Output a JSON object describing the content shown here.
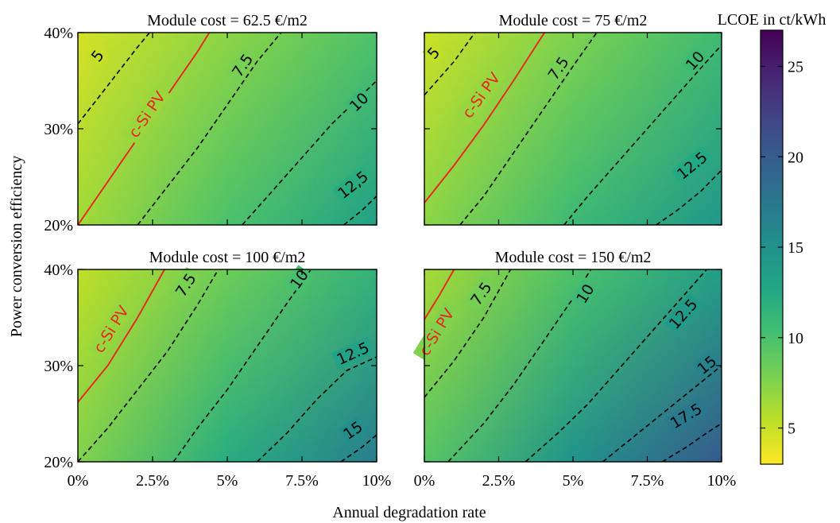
{
  "figure": {
    "ylabel": "Power conversion efficiency",
    "xlabel": "Annual degradation rate",
    "colorbar_label": "LCOE in ct/kWh"
  },
  "chart_data": {
    "type": "heatmap",
    "colormap": "viridis_r",
    "colorbar": {
      "range": [
        3,
        27
      ],
      "ticks": [
        5,
        10,
        15,
        20,
        25
      ],
      "tick_labels": [
        "5",
        "10",
        "15",
        "20",
        "25"
      ]
    },
    "x": {
      "label": "Annual degradation rate",
      "range": [
        0,
        10
      ],
      "ticks": [
        0,
        2.5,
        5,
        7.5,
        10
      ],
      "tick_labels": [
        "0%",
        "2.5%",
        "5%",
        "7.5%",
        "10%"
      ]
    },
    "y": {
      "label": "Power conversion efficiency",
      "range": [
        20,
        40
      ],
      "ticks": [
        20,
        30,
        40
      ],
      "tick_labels": [
        "20%",
        "30%",
        "40%"
      ]
    },
    "reference_line": {
      "label": "c-Si PV",
      "color": "#e8251f"
    },
    "panels": [
      {
        "title": "Module cost = 62.5 €/m2",
        "module_cost": 62.5,
        "lcoe_corners": {
          "x0_y40": 4.5,
          "x10_y40": 9.8,
          "x0_y20": 6.4,
          "x10_y20": 13.4
        },
        "csi_line": [
          [
            0,
            20
          ],
          [
            1,
            24.5
          ],
          [
            2,
            29
          ],
          [
            3,
            33.5
          ],
          [
            4,
            38
          ],
          [
            4.4,
            40
          ]
        ],
        "csi_label_pos": [
          2.3,
          31.5
        ],
        "contours": [
          {
            "level": 5,
            "label": "5",
            "points": [
              [
                0,
                30.5
              ],
              [
                1,
                34.5
              ],
              [
                2,
                38.5
              ],
              [
                2.4,
                40
              ]
            ],
            "label_pos": [
              0.65,
              37.6
            ]
          },
          {
            "level": 7.5,
            "label": "7.5",
            "points": [
              [
                2,
                20
              ],
              [
                3,
                24
              ],
              [
                4,
                28
              ],
              [
                5,
                32.5
              ],
              [
                6,
                37
              ],
              [
                6.8,
                40
              ]
            ],
            "label_pos": [
              5.5,
              36.6
            ]
          },
          {
            "level": 10,
            "label": "10",
            "points": [
              [
                5.5,
                20
              ],
              [
                6.5,
                23.5
              ],
              [
                7.5,
                27
              ],
              [
                8.5,
                30.5
              ],
              [
                9.5,
                33.5
              ],
              [
                10,
                35
              ]
            ],
            "label_pos": [
              9.4,
              32.8
            ]
          },
          {
            "level": 12.5,
            "label": "12,5",
            "points": [
              [
                8.9,
                20
              ],
              [
                9.5,
                21.5
              ],
              [
                10,
                23
              ]
            ],
            "label_pos": [
              9.2,
              24.2
            ]
          }
        ]
      },
      {
        "title": "Module cost = 75 €/m2",
        "module_cost": 75,
        "lcoe_corners": {
          "x0_y40": 4.8,
          "x10_y40": 10.6,
          "x0_y20": 7.2,
          "x10_y20": 14.4
        },
        "csi_line": [
          [
            0,
            22.3
          ],
          [
            1,
            26.2
          ],
          [
            2,
            30.4
          ],
          [
            3,
            35
          ],
          [
            4,
            39.8
          ],
          [
            4.05,
            40
          ]
        ],
        "csi_label_pos": [
          1.9,
          33.5
        ],
        "contours": [
          {
            "level": 5,
            "label": "5",
            "points": [
              [
                0,
                33.5
              ],
              [
                1,
                37
              ],
              [
                1.7,
                40
              ]
            ],
            "label_pos": [
              0.3,
              37.9
            ]
          },
          {
            "level": 7.5,
            "label": "7.5",
            "points": [
              [
                1.2,
                20
              ],
              [
                2,
                23
              ],
              [
                3,
                27.5
              ],
              [
                4,
                32
              ],
              [
                5,
                36.5
              ],
              [
                5.8,
                40
              ]
            ],
            "label_pos": [
              4.5,
              36.3
            ]
          },
          {
            "level": 10,
            "label": "10",
            "points": [
              [
                4.7,
                20
              ],
              [
                5.5,
                23
              ],
              [
                6.5,
                26.5
              ],
              [
                7.5,
                30
              ],
              [
                8.5,
                33.5
              ],
              [
                9.5,
                37
              ],
              [
                10,
                38.7
              ]
            ],
            "label_pos": [
              9.1,
              37.1
            ]
          },
          {
            "level": 12.5,
            "label": "12.5",
            "points": [
              [
                7.8,
                20
              ],
              [
                8.5,
                21.5
              ],
              [
                9.3,
                23.5
              ],
              [
                10,
                25.7
              ]
            ],
            "label_pos": [
              9,
              26.2
            ]
          }
        ]
      },
      {
        "title": "Module cost = 100 €/m2",
        "module_cost": 100,
        "lcoe_corners": {
          "x0_y40": 5.3,
          "x10_y40": 11.5,
          "x0_y20": 7.6,
          "x10_y20": 16.8
        },
        "csi_line": [
          [
            0,
            26.2
          ],
          [
            1,
            30
          ],
          [
            2,
            35
          ],
          [
            2.9,
            40
          ]
        ],
        "csi_label_pos": [
          1.1,
          33.8
        ],
        "contours": [
          {
            "level": 7.5,
            "label": "7.5",
            "points": [
              [
                0,
                20
              ],
              [
                1,
                23.5
              ],
              [
                2,
                27.5
              ],
              [
                3,
                31.5
              ],
              [
                4,
                36.3
              ],
              [
                4.7,
                40
              ]
            ],
            "label_pos": [
              3.6,
              38.4
            ]
          },
          {
            "level": 10,
            "label": "10",
            "points": [
              [
                3.2,
                20
              ],
              [
                4,
                23.5
              ],
              [
                5,
                27.5
              ],
              [
                6,
                32
              ],
              [
                7,
                36.5
              ],
              [
                7.8,
                40
              ]
            ],
            "label_pos": [
              7.4,
              39
            ]
          },
          {
            "level": 12.5,
            "label": "12.5",
            "points": [
              [
                6,
                20
              ],
              [
                7,
                23
              ],
              [
                8,
                26.5
              ],
              [
                9,
                29.5
              ],
              [
                10,
                30.9
              ]
            ],
            "label_pos": [
              9.2,
              31.3
            ]
          },
          {
            "level": 15,
            "label": "15",
            "points": [
              [
                8.8,
                20
              ],
              [
                9.5,
                21.5
              ],
              [
                10,
                22.8
              ]
            ],
            "label_pos": [
              9.2,
              23.3
            ]
          }
        ]
      },
      {
        "title": "Module cost = 150 €/m2",
        "module_cost": 150,
        "lcoe_corners": {
          "x0_y40": 6.2,
          "x10_y40": 13.5,
          "x0_y20": 9.4,
          "x10_y20": 20.2
        },
        "csi_line": [
          [
            0,
            34.8
          ],
          [
            0.5,
            37.3
          ],
          [
            1,
            40
          ]
        ],
        "csi_label_pos": [
          0.4,
          33.5
        ],
        "contours": [
          {
            "level": 7.5,
            "label": "7.5",
            "points": [
              [
                0,
                26.7
              ],
              [
                1,
                30.5
              ],
              [
                2,
                35
              ],
              [
                2.9,
                40
              ]
            ],
            "label_pos": [
              1.9,
              37.5
            ]
          },
          {
            "level": 10,
            "label": "10",
            "points": [
              [
                0.8,
                20
              ],
              [
                2,
                24
              ],
              [
                3,
                28
              ],
              [
                4,
                32.5
              ],
              [
                5,
                37
              ],
              [
                5.6,
                40
              ]
            ],
            "label_pos": [
              5.4,
              37.5
            ]
          },
          {
            "level": 12.5,
            "label": "12.5",
            "points": [
              [
                3.4,
                20
              ],
              [
                4.5,
                23
              ],
              [
                5.5,
                26
              ],
              [
                6.5,
                29.5
              ],
              [
                7.5,
                33
              ],
              [
                8.5,
                36.5
              ],
              [
                9.5,
                40
              ]
            ],
            "label_pos": [
              8.7,
              35.4
            ]
          },
          {
            "level": 15,
            "label": "15",
            "points": [
              [
                6,
                20
              ],
              [
                7,
                22.5
              ],
              [
                8,
                25
              ],
              [
                9,
                27.5
              ],
              [
                10,
                30
              ]
            ],
            "label_pos": [
              9.5,
              30.1
            ]
          },
          {
            "level": 17.5,
            "label": "17.5",
            "points": [
              [
                8,
                20
              ],
              [
                8.8,
                21.5
              ],
              [
                9.5,
                23
              ],
              [
                10,
                24
              ]
            ],
            "label_pos": [
              8.8,
              24.8
            ]
          }
        ]
      }
    ]
  }
}
